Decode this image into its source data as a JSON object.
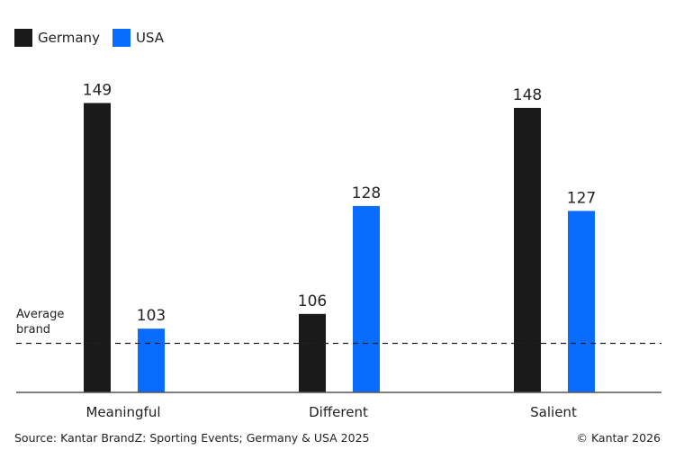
{
  "chart_data": {
    "type": "bar",
    "categories": [
      "Meaningful",
      "Different",
      "Salient"
    ],
    "series": [
      {
        "name": "Germany",
        "values": [
          149,
          106,
          148
        ],
        "color": "#1a1a1a"
      },
      {
        "name": "USA",
        "values": [
          103,
          128,
          127
        ],
        "color": "#0a6cff"
      }
    ],
    "reference_line": {
      "value": 100,
      "label_line1": "Average",
      "label_line2": "brand",
      "style": "dashed"
    },
    "ylim": [
      90,
      170
    ],
    "grid": false,
    "legend": "top-left",
    "data_labels": true
  },
  "footer": {
    "source": "Source: Kantar BrandZ: Sporting Events; Germany & USA 2025",
    "copyright": "© Kantar 2026"
  }
}
